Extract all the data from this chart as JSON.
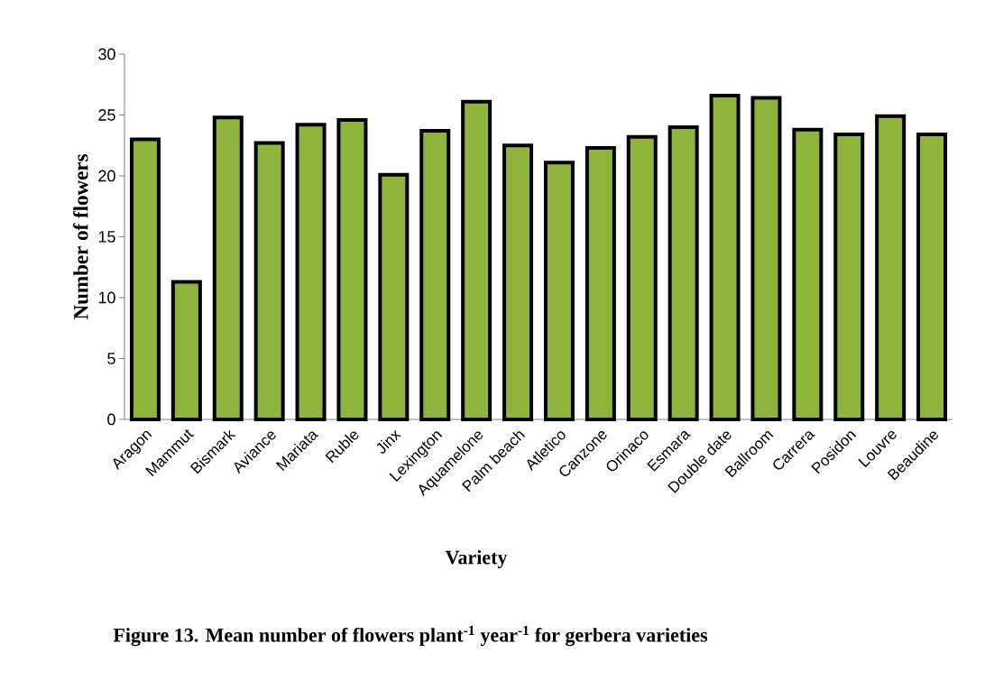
{
  "chart_data": {
    "type": "bar",
    "title": "Figure 13. Mean  number of flowers plant$^{-1}$ year$^{-1}$ for gerbera varieties",
    "xlabel": "Variety",
    "ylabel": "Number of  flowers",
    "categories": [
      "Aragon",
      "Mammut",
      "Bismark",
      "Aviance",
      "Mariata",
      "Ruble",
      "Jinx",
      "Lexington",
      "Aquamelone",
      "Palm beach",
      "Atletico",
      "Canzone",
      "Orinaco",
      "Esmara",
      "Double date",
      "Ballroom",
      "Carrera",
      "Posidon",
      "Louvre",
      "Beaudine"
    ],
    "values": [
      23.0,
      11.3,
      24.8,
      22.7,
      24.2,
      24.6,
      20.1,
      23.7,
      26.1,
      22.5,
      21.1,
      22.3,
      23.2,
      24.0,
      26.6,
      26.4,
      23.8,
      23.4,
      24.9,
      23.4
    ],
    "color": "#8fb43c",
    "ylim": [
      0,
      30
    ],
    "yticks": [
      0,
      5,
      10,
      15,
      20,
      25,
      30
    ]
  }
}
